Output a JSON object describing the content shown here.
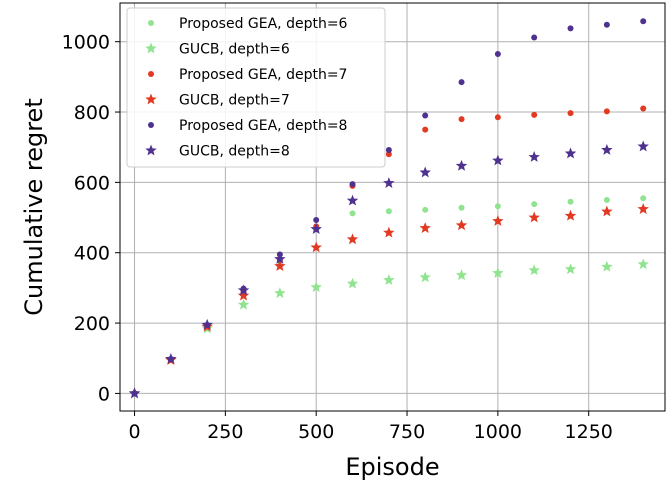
{
  "chart_data": {
    "type": "scatter",
    "xlabel": "Episode",
    "ylabel": "Cumulative regret",
    "xlim": [
      -40,
      1460
    ],
    "ylim": [
      -50,
      1110
    ],
    "xticks": [
      0,
      250,
      500,
      750,
      1000,
      1250
    ],
    "yticks": [
      0,
      200,
      400,
      600,
      800,
      1000
    ],
    "grid": true,
    "legend_position": "top-left",
    "x": [
      0,
      100,
      200,
      300,
      400,
      500,
      600,
      700,
      800,
      900,
      1000,
      1100,
      1200,
      1300,
      1400
    ],
    "series": [
      {
        "name": "Proposed GEA, depth=6",
        "marker": "circle",
        "color": "#90e490",
        "values": [
          0,
          95,
          185,
          280,
          375,
          470,
          512,
          518,
          522,
          528,
          532,
          538,
          545,
          550,
          555
        ]
      },
      {
        "name": "GUCB, depth=6",
        "marker": "star",
        "color": "#90e490",
        "values": [
          0,
          95,
          185,
          252,
          285,
          302,
          312,
          322,
          330,
          336,
          342,
          350,
          353,
          360,
          367
        ]
      },
      {
        "name": "Proposed GEA, depth=7",
        "marker": "circle",
        "color": "#e23a22",
        "values": [
          0,
          95,
          190,
          288,
          380,
          475,
          590,
          680,
          750,
          780,
          785,
          792,
          797,
          802,
          810
        ]
      },
      {
        "name": "GUCB, depth=7",
        "marker": "star",
        "color": "#e23a22",
        "values": [
          0,
          95,
          190,
          278,
          362,
          415,
          438,
          457,
          470,
          478,
          490,
          500,
          505,
          517,
          524
        ]
      },
      {
        "name": "Proposed GEA, depth=8",
        "marker": "circle",
        "color": "#4f3290",
        "values": [
          0,
          98,
          195,
          298,
          395,
          493,
          595,
          692,
          790,
          885,
          965,
          1012,
          1038,
          1048,
          1058
        ]
      },
      {
        "name": "GUCB, depth=8",
        "marker": "star",
        "color": "#4f3290",
        "values": [
          0,
          98,
          195,
          293,
          382,
          467,
          548,
          598,
          628,
          647,
          662,
          672,
          682,
          692,
          702
        ]
      }
    ]
  }
}
